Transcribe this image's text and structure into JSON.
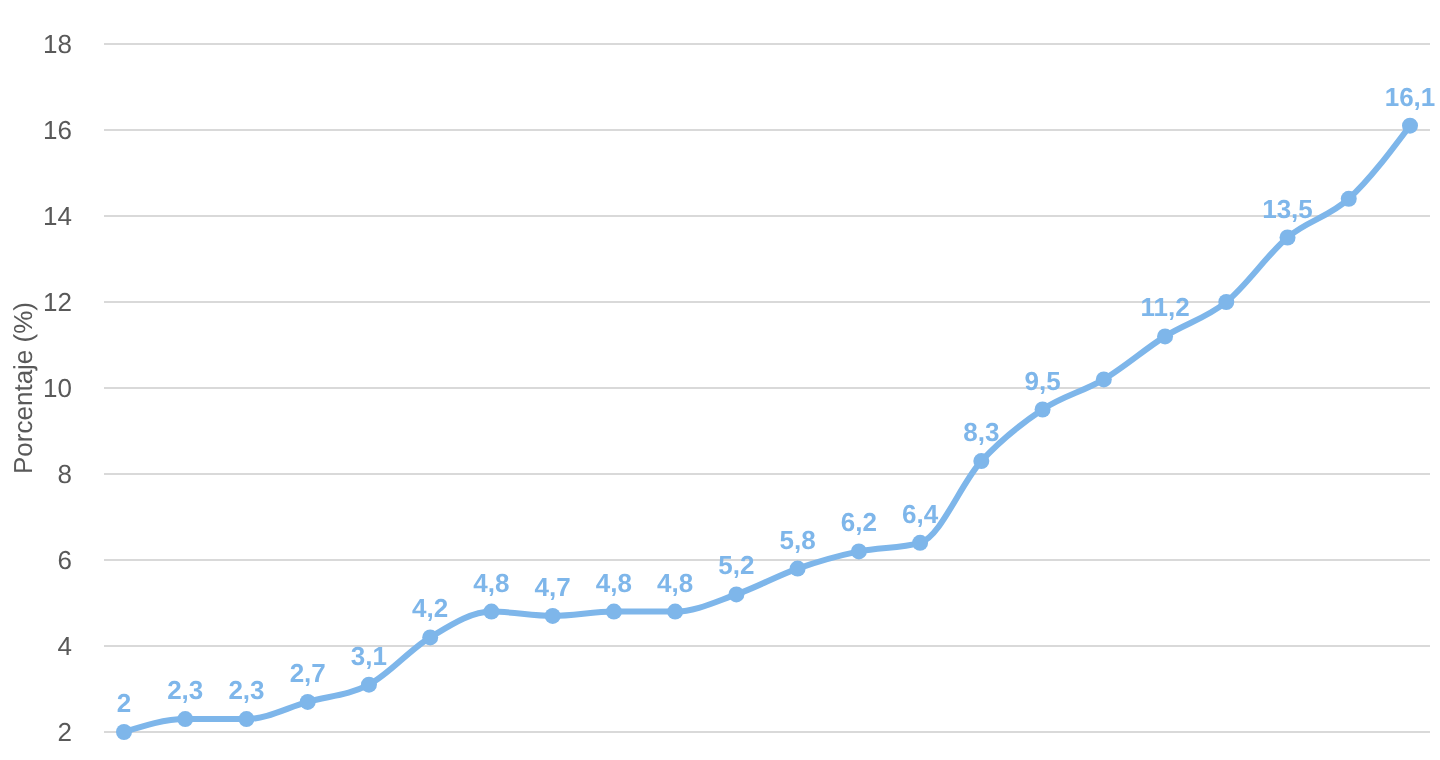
{
  "chart_data": {
    "type": "line",
    "ylabel": "Porcentaje (%)",
    "categories": [
      null,
      null,
      null,
      null,
      null,
      null,
      null,
      null,
      null,
      null,
      null,
      null,
      null,
      null,
      null,
      null,
      null,
      null,
      null,
      null,
      null,
      null
    ],
    "series": [
      {
        "color": "#7eb6ea",
        "values": [
          2,
          2.3,
          2.3,
          2.7,
          3.1,
          4.2,
          4.8,
          4.7,
          4.8,
          4.8,
          5.2,
          5.8,
          6.2,
          6.4,
          8.3,
          9.5,
          10.2,
          11.2,
          12,
          13.5,
          14.4,
          16.1
        ],
        "value_labels": [
          "2",
          "2,3",
          "2,3",
          "2,7",
          "3,1",
          "4,2",
          "4,8",
          "4,7",
          "4,8",
          "4,8",
          "5,2",
          "5,8",
          "6,2",
          "6,4",
          "8,3",
          "9,5",
          null,
          "11,2",
          null,
          "13,5",
          null,
          "16,1"
        ]
      }
    ],
    "ylim": [
      2,
      18
    ],
    "yticks": [
      2,
      4,
      6,
      8,
      10,
      12,
      14,
      16,
      18
    ],
    "grid": "y",
    "marker": "circle",
    "line_style": "solid"
  }
}
